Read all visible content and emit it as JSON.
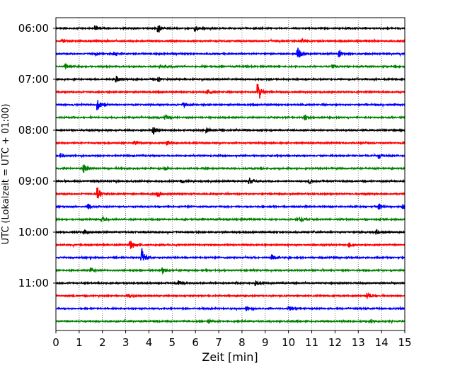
{
  "chart_data": {
    "type": "line",
    "subtype": "helicorder",
    "title": "",
    "xlabel": "Zeit  [min]",
    "ylabel": "UTC (Lokalzeit = UTC + 01:00)",
    "xlim": [
      0,
      15
    ],
    "x_ticks": [
      0,
      1,
      2,
      3,
      4,
      5,
      6,
      7,
      8,
      9,
      10,
      11,
      12,
      13,
      14,
      15
    ],
    "x_grid": "dotted vertical lines at every minute",
    "y_tick_labels": [
      "06:00",
      "07:00",
      "08:00",
      "09:00",
      "10:00",
      "11:00"
    ],
    "y_tick_trace_index": [
      0,
      4,
      8,
      12,
      16,
      20
    ],
    "trace_interval_minutes": 15,
    "line_colors": [
      "#000000",
      "#ff0000",
      "#0000ff",
      "#008000"
    ],
    "legend": "none",
    "series": [
      {
        "start": "06:00",
        "color": "#000000",
        "events": [
          {
            "t": 1.7,
            "a": 0.25
          },
          {
            "t": 4.4,
            "a": 0.45
          },
          {
            "t": 6.0,
            "a": 0.35
          }
        ]
      },
      {
        "start": "06:15",
        "color": "#ff0000",
        "events": [
          {
            "t": 0.3,
            "a": 0.2
          },
          {
            "t": 10.6,
            "a": 0.25
          }
        ]
      },
      {
        "start": "06:30",
        "color": "#0000ff",
        "events": [
          {
            "t": 1.7,
            "a": 0.2
          },
          {
            "t": 2.5,
            "a": 0.2
          },
          {
            "t": 10.4,
            "a": 0.8
          },
          {
            "t": 12.2,
            "a": 0.35
          }
        ]
      },
      {
        "start": "06:45",
        "color": "#008000",
        "events": [
          {
            "t": 0.4,
            "a": 0.25
          },
          {
            "t": 4.5,
            "a": 0.2
          },
          {
            "t": 11.9,
            "a": 0.2
          }
        ]
      },
      {
        "start": "07:00",
        "color": "#000000",
        "events": [
          {
            "t": 2.6,
            "a": 0.35
          },
          {
            "t": 4.4,
            "a": 0.25
          }
        ]
      },
      {
        "start": "07:15",
        "color": "#ff0000",
        "events": [
          {
            "t": 6.5,
            "a": 0.25
          },
          {
            "t": 8.7,
            "a": 1.2
          }
        ]
      },
      {
        "start": "07:30",
        "color": "#0000ff",
        "events": [
          {
            "t": 1.8,
            "a": 0.6
          },
          {
            "t": 5.5,
            "a": 0.25
          }
        ]
      },
      {
        "start": "07:45",
        "color": "#008000",
        "events": [
          {
            "t": 4.7,
            "a": 0.3
          },
          {
            "t": 10.7,
            "a": 0.3
          }
        ]
      },
      {
        "start": "08:00",
        "color": "#000000",
        "events": [
          {
            "t": 4.2,
            "a": 0.55
          },
          {
            "t": 6.5,
            "a": 0.3
          }
        ]
      },
      {
        "start": "08:15",
        "color": "#ff0000",
        "events": [
          {
            "t": 3.4,
            "a": 0.25
          },
          {
            "t": 4.8,
            "a": 0.25
          }
        ]
      },
      {
        "start": "08:30",
        "color": "#0000ff",
        "events": [
          {
            "t": 0.2,
            "a": 0.3
          },
          {
            "t": 13.9,
            "a": 0.3
          }
        ]
      },
      {
        "start": "08:45",
        "color": "#008000",
        "events": [
          {
            "t": 1.2,
            "a": 0.5
          },
          {
            "t": 4.7,
            "a": 0.2
          }
        ]
      },
      {
        "start": "09:00",
        "color": "#000000",
        "events": [
          {
            "t": 5.4,
            "a": 0.3
          },
          {
            "t": 8.3,
            "a": 0.45
          },
          {
            "t": 10.9,
            "a": 0.3
          }
        ]
      },
      {
        "start": "09:15",
        "color": "#ff0000",
        "events": [
          {
            "t": 1.8,
            "a": 0.8
          },
          {
            "t": 4.4,
            "a": 0.3
          }
        ]
      },
      {
        "start": "09:30",
        "color": "#0000ff",
        "events": [
          {
            "t": 1.4,
            "a": 0.3
          },
          {
            "t": 13.9,
            "a": 0.35
          },
          {
            "t": 14.9,
            "a": 0.3
          }
        ]
      },
      {
        "start": "09:45",
        "color": "#008000",
        "events": [
          {
            "t": 2.0,
            "a": 0.25
          },
          {
            "t": 10.5,
            "a": 0.25
          }
        ]
      },
      {
        "start": "10:00",
        "color": "#000000",
        "events": [
          {
            "t": 1.2,
            "a": 0.3
          },
          {
            "t": 13.8,
            "a": 0.3
          }
        ]
      },
      {
        "start": "10:15",
        "color": "#ff0000",
        "events": [
          {
            "t": 3.2,
            "a": 0.55
          },
          {
            "t": 12.6,
            "a": 0.25
          }
        ]
      },
      {
        "start": "10:30",
        "color": "#0000ff",
        "events": [
          {
            "t": 3.7,
            "a": 1.0
          },
          {
            "t": 9.3,
            "a": 0.3
          }
        ]
      },
      {
        "start": "10:45",
        "color": "#008000",
        "events": [
          {
            "t": 1.5,
            "a": 0.25
          },
          {
            "t": 4.6,
            "a": 0.3
          }
        ]
      },
      {
        "start": "11:00",
        "color": "#000000",
        "events": [
          {
            "t": 5.3,
            "a": 0.3
          },
          {
            "t": 8.6,
            "a": 0.25
          }
        ]
      },
      {
        "start": "11:15",
        "color": "#ff0000",
        "events": [
          {
            "t": 3.1,
            "a": 0.3
          },
          {
            "t": 13.4,
            "a": 0.35
          }
        ]
      },
      {
        "start": "11:30",
        "color": "#0000ff",
        "events": [
          {
            "t": 8.2,
            "a": 0.25
          },
          {
            "t": 10.0,
            "a": 0.35
          }
        ]
      },
      {
        "start": "11:45",
        "color": "#008000",
        "events": [
          {
            "t": 6.6,
            "a": 0.2
          },
          {
            "t": 13.5,
            "a": 0.2
          }
        ]
      }
    ]
  }
}
